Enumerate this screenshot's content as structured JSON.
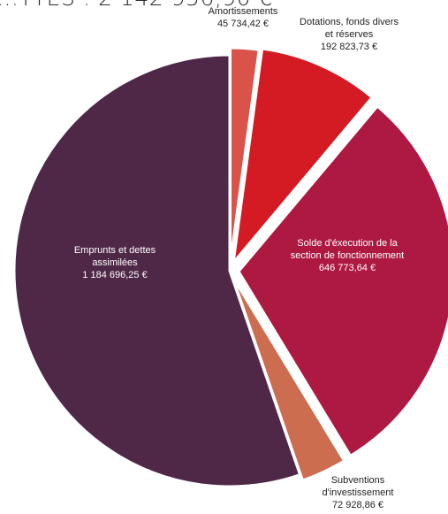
{
  "title_text": "…TTES : 2 142 956,90 €",
  "chart_data": {
    "type": "pie",
    "title": "…TTES : 2 142 956,90 €",
    "unit": "€",
    "slices": [
      {
        "label_lines": [
          "Amortissements"
        ],
        "value": 45734.42,
        "value_text": "45 734,42 €",
        "color": "#d9534a"
      },
      {
        "label_lines": [
          "Dotations, fonds divers",
          "et réserves"
        ],
        "value": 192823.73,
        "value_text": "192 823,73 €",
        "color": "#d41a22"
      },
      {
        "label_lines": [
          "Solde d'éxecution de la",
          "section de fonctionnement"
        ],
        "value": 646773.64,
        "value_text": "646 773,64 €",
        "color": "#ad1941"
      },
      {
        "label_lines": [
          "Subventions",
          "d'investissement"
        ],
        "value": 72928.86,
        "value_text": "72 928,86 €",
        "color": "#cc6d50"
      },
      {
        "label_lines": [
          "Emprunts et dettes",
          "assimilées"
        ],
        "value": 1184696.25,
        "value_text": "1 184 696,25 €",
        "color": "#4f2848"
      }
    ]
  }
}
